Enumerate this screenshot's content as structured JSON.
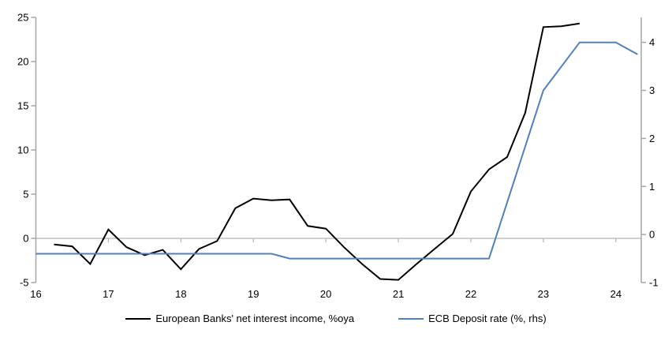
{
  "chart_data": {
    "type": "line",
    "title": "",
    "x_note": "x axis shows years 2016-2024 labelled 16-24, quarterly data",
    "x_axis": {
      "tick_values": [
        16,
        17,
        18,
        19,
        20,
        21,
        22,
        23,
        24
      ],
      "tick_labels": [
        "16",
        "17",
        "18",
        "19",
        "20",
        "21",
        "22",
        "23",
        "24"
      ],
      "range": [
        16,
        24.35
      ]
    },
    "left_axis": {
      "tick_values": [
        -5,
        0,
        5,
        10,
        15,
        20,
        25
      ],
      "tick_labels": [
        "-5",
        "0",
        "5",
        "10",
        "15",
        "20",
        "25"
      ],
      "range": [
        -5,
        25
      ]
    },
    "right_axis": {
      "tick_values": [
        -1,
        0,
        1,
        2,
        3,
        4
      ],
      "tick_labels": [
        "-1",
        "0",
        "1",
        "2",
        "3",
        "4"
      ],
      "range": [
        -1,
        4.52
      ]
    },
    "grid": "zero line only",
    "legend_position": "bottom center",
    "series": [
      {
        "name": "European Banks' net interest income, %oya",
        "axis": "left",
        "color": "#000000",
        "points": [
          [
            16.25,
            -0.7
          ],
          [
            16.5,
            -0.9
          ],
          [
            16.75,
            -2.9
          ],
          [
            17.0,
            1.0
          ],
          [
            17.25,
            -1.0
          ],
          [
            17.5,
            -1.9
          ],
          [
            17.75,
            -1.3
          ],
          [
            18.0,
            -3.5
          ],
          [
            18.25,
            -1.2
          ],
          [
            18.5,
            -0.3
          ],
          [
            18.75,
            3.4
          ],
          [
            19.0,
            4.5
          ],
          [
            19.25,
            4.3
          ],
          [
            19.5,
            4.4
          ],
          [
            19.75,
            1.4
          ],
          [
            20.0,
            1.1
          ],
          [
            20.25,
            -1.0
          ],
          [
            20.5,
            -2.9
          ],
          [
            20.75,
            -4.6
          ],
          [
            21.0,
            -4.7
          ],
          [
            21.25,
            -2.9
          ],
          [
            21.5,
            -1.2
          ],
          [
            21.75,
            0.5
          ],
          [
            22.0,
            5.3
          ],
          [
            22.25,
            7.8
          ],
          [
            22.5,
            9.2
          ],
          [
            22.75,
            14.2
          ],
          [
            23.0,
            23.9
          ],
          [
            23.25,
            24.0
          ],
          [
            23.5,
            24.3
          ]
        ]
      },
      {
        "name": "ECB Deposit rate (%, rhs)",
        "axis": "right",
        "color": "#4f81bd",
        "points": [
          [
            16.0,
            -0.4
          ],
          [
            19.25,
            -0.4
          ],
          [
            19.5,
            -0.5
          ],
          [
            22.25,
            -0.5
          ],
          [
            23.0,
            3.0
          ],
          [
            23.5,
            4.0
          ],
          [
            24.0,
            4.0
          ],
          [
            24.3,
            3.75
          ]
        ]
      }
    ],
    "colors": {
      "axis": "#a6a6a6",
      "zero_line": "#b3b3b3",
      "series_black": "#000000",
      "series_blue": "#4f81bd",
      "background": "#ffffff"
    }
  }
}
